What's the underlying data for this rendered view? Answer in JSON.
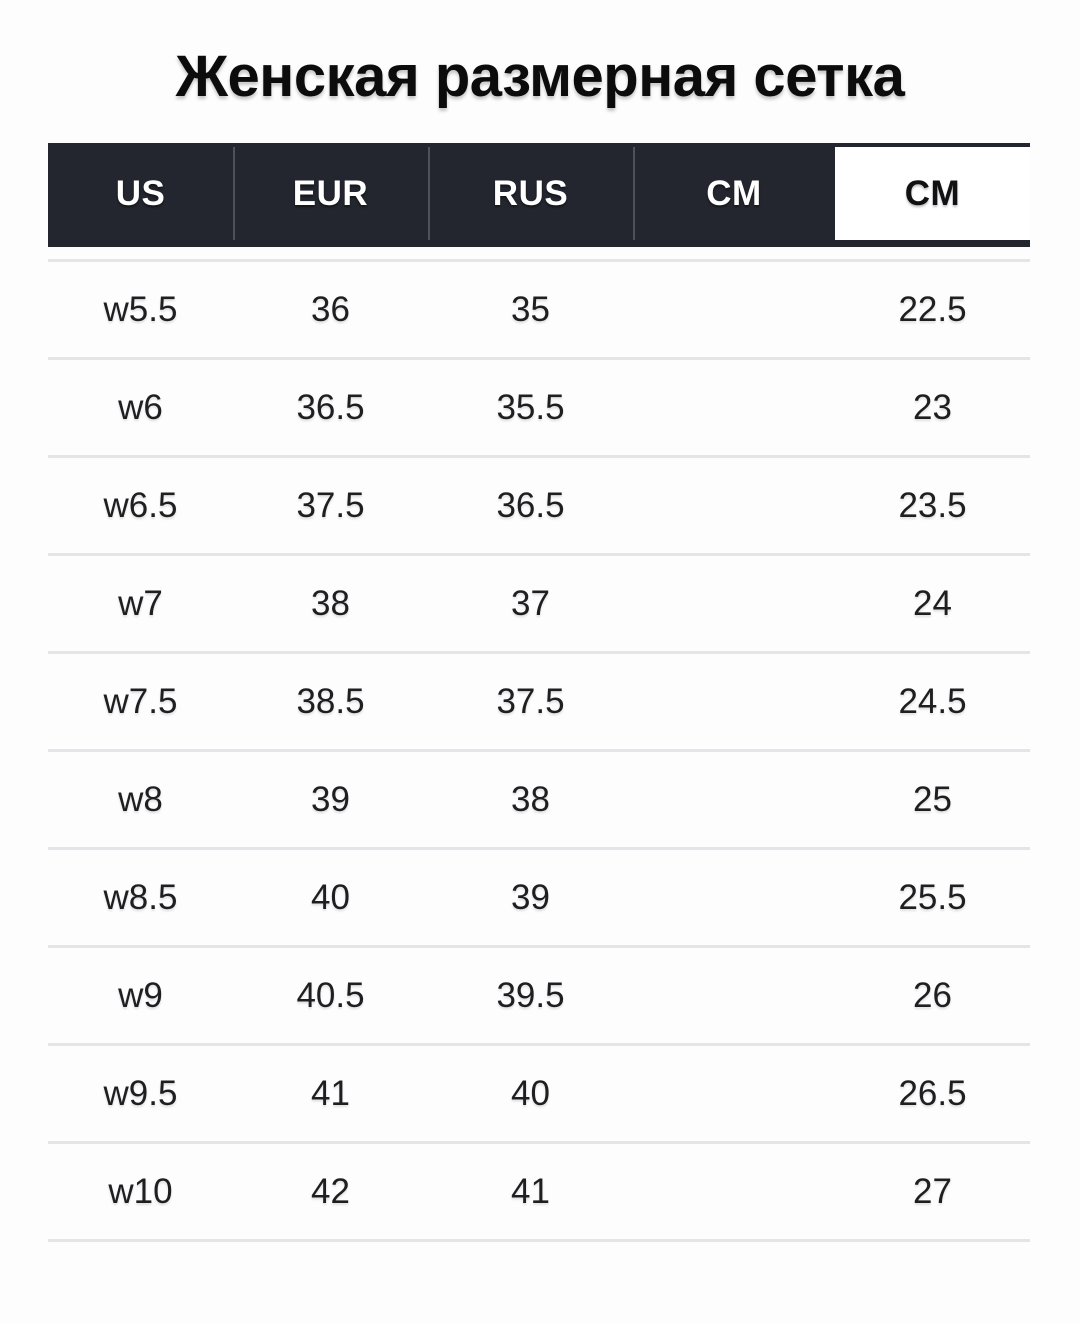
{
  "title": "Женская размерная сетка",
  "table": {
    "columns": [
      "US",
      "EUR",
      "RUS",
      "CM",
      "CM"
    ],
    "highlighted_column_index": 4,
    "rows": [
      {
        "us": "w5.5",
        "eur": "36",
        "rus": "35",
        "cm_dark": "",
        "cm": "22.5"
      },
      {
        "us": "w6",
        "eur": "36.5",
        "rus": "35.5",
        "cm_dark": "",
        "cm": "23"
      },
      {
        "us": "w6.5",
        "eur": "37.5",
        "rus": "36.5",
        "cm_dark": "",
        "cm": "23.5"
      },
      {
        "us": "w7",
        "eur": "38",
        "rus": "37",
        "cm_dark": "",
        "cm": "24"
      },
      {
        "us": "w7.5",
        "eur": "38.5",
        "rus": "37.5",
        "cm_dark": "",
        "cm": "24.5"
      },
      {
        "us": "w8",
        "eur": "39",
        "rus": "38",
        "cm_dark": "",
        "cm": "25"
      },
      {
        "us": "w8.5",
        "eur": "40",
        "rus": "39",
        "cm_dark": "",
        "cm": "25.5"
      },
      {
        "us": "w9",
        "eur": "40.5",
        "rus": "39.5",
        "cm_dark": "",
        "cm": "26"
      },
      {
        "us": "w9.5",
        "eur": "41",
        "rus": "40",
        "cm_dark": "",
        "cm": "26.5"
      },
      {
        "us": "w10",
        "eur": "42",
        "rus": "41",
        "cm_dark": "",
        "cm": "27"
      }
    ]
  },
  "colors": {
    "header_background": "#23262f",
    "header_text": "#ffffff",
    "highlighted_header_background": "#ffffff",
    "highlighted_header_text": "#111113",
    "header_divider": "#4d515c",
    "row_divider": "#e5e5e9",
    "body_text": "#1f1f21",
    "title_text": "#0c0c0d",
    "page_background": "#fdfdfe"
  }
}
